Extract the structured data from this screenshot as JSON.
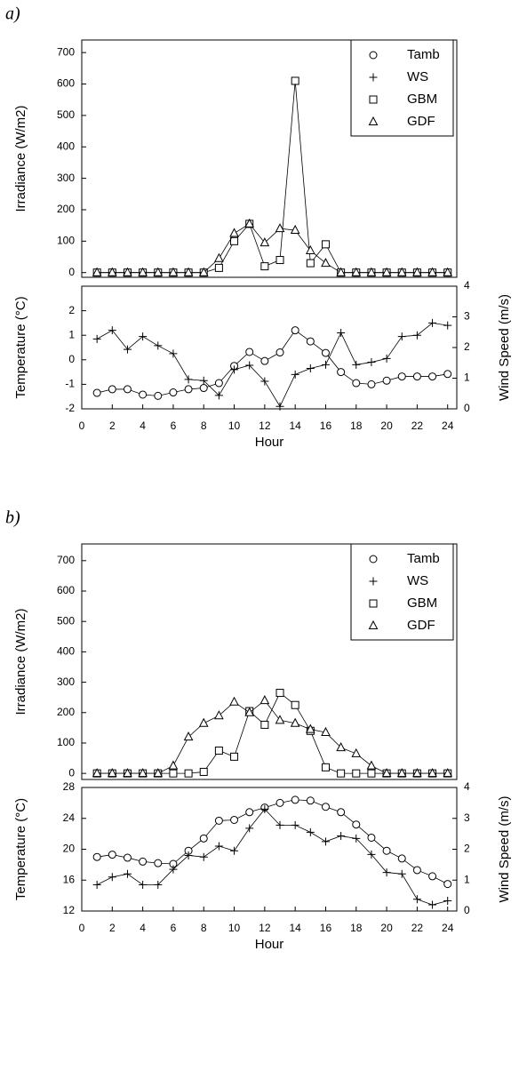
{
  "chart_data": [
    {
      "type": "line",
      "panel_label": "a)",
      "ylabel": "Irradiance (W/m2)",
      "legend": "upper right",
      "x": [
        1,
        2,
        3,
        4,
        5,
        6,
        7,
        8,
        9,
        10,
        11,
        12,
        13,
        14,
        15,
        16,
        17,
        18,
        19,
        20,
        21,
        22,
        23,
        24
      ],
      "xlim": [
        0,
        24.6
      ],
      "ylim": [
        -15,
        740
      ],
      "yticks": [
        0,
        100,
        200,
        300,
        400,
        500,
        600,
        700
      ],
      "series": [
        {
          "name": "GBM",
          "marker": "square",
          "color": "#000000",
          "values": [
            0,
            0,
            0,
            0,
            0,
            0,
            0,
            0,
            15,
            100,
            155,
            20,
            40,
            610,
            30,
            90,
            0,
            0,
            0,
            0,
            0,
            0,
            0,
            0
          ]
        },
        {
          "name": "GDF",
          "marker": "triangle",
          "color": "#000000",
          "values": [
            0,
            0,
            0,
            0,
            0,
            0,
            0,
            0,
            45,
            125,
            155,
            95,
            140,
            135,
            70,
            30,
            0,
            0,
            0,
            0,
            0,
            0,
            0,
            0
          ]
        }
      ]
    },
    {
      "type": "line",
      "xlabel": "Hour",
      "ylabel": "Temperature (°C)",
      "y2label": "Wind Speed (m/s)",
      "x": [
        1,
        2,
        3,
        4,
        5,
        6,
        7,
        8,
        9,
        10,
        11,
        12,
        13,
        14,
        15,
        16,
        17,
        18,
        19,
        20,
        21,
        22,
        23,
        24
      ],
      "xlim": [
        0,
        24.6
      ],
      "xticks": [
        0,
        2,
        4,
        6,
        8,
        10,
        12,
        14,
        16,
        18,
        20,
        22,
        24
      ],
      "ylim": [
        -2,
        3
      ],
      "yticks": [
        -2,
        -1,
        0,
        1,
        2
      ],
      "y2lim": [
        0,
        4
      ],
      "y2ticks": [
        0,
        1,
        2,
        3,
        4
      ],
      "series": [
        {
          "name": "Tamb",
          "marker": "circle",
          "color": "#000000",
          "values": [
            -1.35,
            -1.2,
            -1.2,
            -1.42,
            -1.47,
            -1.33,
            -1.2,
            -1.15,
            -0.95,
            -0.25,
            0.32,
            -0.05,
            0.3,
            1.2,
            0.75,
            0.28,
            -0.5,
            -0.95,
            -1.0,
            -0.85,
            -0.68,
            -0.68,
            -0.68,
            -0.58
          ]
        },
        {
          "name": "WS",
          "marker": "plus",
          "color": "#000000",
          "axis": "y2",
          "values": [
            2.28,
            2.56,
            1.94,
            2.36,
            2.06,
            1.8,
            0.96,
            0.92,
            0.44,
            1.28,
            1.42,
            0.9,
            0.08,
            1.12,
            1.32,
            1.44,
            2.48,
            1.44,
            1.52,
            1.64,
            2.36,
            2.4,
            2.8,
            2.72
          ]
        }
      ]
    },
    {
      "type": "line",
      "panel_label": "b)",
      "ylabel": "Irradiance (W/m2)",
      "legend": "upper right",
      "x": [
        1,
        2,
        3,
        4,
        5,
        6,
        7,
        8,
        9,
        10,
        11,
        12,
        13,
        14,
        15,
        16,
        17,
        18,
        19,
        20,
        21,
        22,
        23,
        24
      ],
      "xlim": [
        0,
        24.6
      ],
      "ylim": [
        -20,
        755
      ],
      "yticks": [
        0,
        100,
        200,
        300,
        400,
        500,
        600,
        700
      ],
      "series": [
        {
          "name": "GBM",
          "marker": "square",
          "color": "#000000",
          "values": [
            0,
            0,
            0,
            0,
            0,
            0,
            0,
            5,
            75,
            55,
            205,
            160,
            265,
            225,
            140,
            20,
            0,
            0,
            0,
            0,
            0,
            0,
            0,
            0
          ]
        },
        {
          "name": "GDF",
          "marker": "triangle",
          "color": "#000000",
          "values": [
            0,
            0,
            0,
            0,
            0,
            25,
            120,
            165,
            190,
            235,
            200,
            240,
            175,
            165,
            145,
            135,
            85,
            65,
            25,
            0,
            0,
            0,
            0,
            0
          ]
        }
      ]
    },
    {
      "type": "line",
      "xlabel": "Hour",
      "ylabel": "Temperature (°C)",
      "y2label": "Wind Speed (m/s)",
      "x": [
        1,
        2,
        3,
        4,
        5,
        6,
        7,
        8,
        9,
        10,
        11,
        12,
        13,
        14,
        15,
        16,
        17,
        18,
        19,
        20,
        21,
        22,
        23,
        24
      ],
      "xlim": [
        0,
        24.6
      ],
      "xticks": [
        0,
        2,
        4,
        6,
        8,
        10,
        12,
        14,
        16,
        18,
        20,
        22,
        24
      ],
      "ylim": [
        12,
        28
      ],
      "yticks": [
        12,
        16,
        20,
        24,
        28
      ],
      "y2lim": [
        0,
        4
      ],
      "y2ticks": [
        0,
        1,
        2,
        3,
        4
      ],
      "series": [
        {
          "name": "Tamb",
          "marker": "circle",
          "color": "#000000",
          "values": [
            19.0,
            19.3,
            18.9,
            18.4,
            18.2,
            18.1,
            19.8,
            21.4,
            23.7,
            23.8,
            24.8,
            25.4,
            26.0,
            26.4,
            26.3,
            25.5,
            24.8,
            23.2,
            21.5,
            19.8,
            18.8,
            17.3,
            16.5,
            15.5
          ]
        },
        {
          "name": "WS",
          "marker": "plus",
          "color": "#000000",
          "axis": "y2",
          "values": [
            0.85,
            1.1,
            1.2,
            0.85,
            0.85,
            1.35,
            1.8,
            1.75,
            2.1,
            1.95,
            2.68,
            3.3,
            2.78,
            2.78,
            2.55,
            2.25,
            2.43,
            2.35,
            1.83,
            1.25,
            1.2,
            0.38,
            0.2,
            0.33
          ]
        }
      ]
    }
  ]
}
